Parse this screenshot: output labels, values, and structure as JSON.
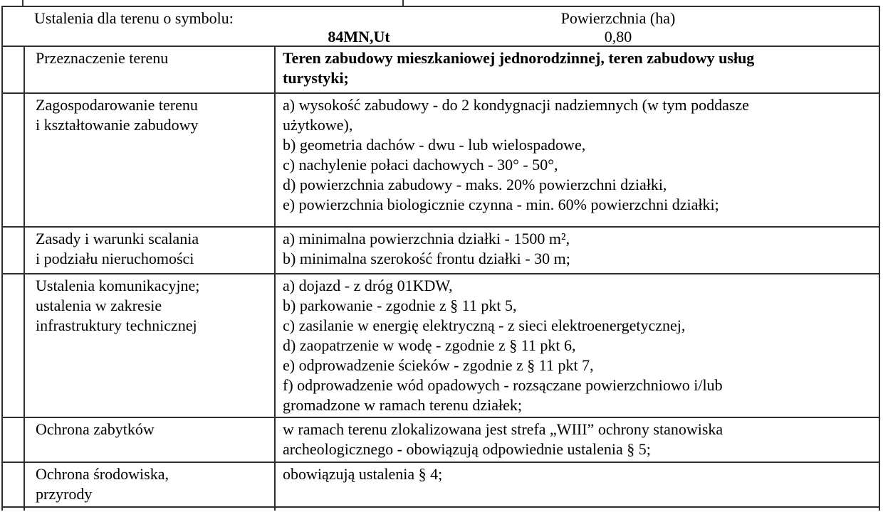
{
  "header": {
    "title": "Ustalenia dla terenu o symbolu:",
    "symbol": "84MN,Ut",
    "area_label": "Powierzchnia (ha)",
    "area_value": "0,80"
  },
  "rows": [
    {
      "label": [
        "Przeznaczenie terenu"
      ],
      "content": [
        "Teren zabudowy mieszkaniowej jednorodzinnej, teren zabudowy usług",
        "turystyki;"
      ]
    },
    {
      "label": [
        "Zagospodarowanie terenu",
        "i kształtowanie zabudowy"
      ],
      "content": [
        "a) wysokość zabudowy - do 2 kondygnacji nadziemnych (w tym poddasze",
        "użytkowe),",
        "b) geometria dachów - dwu - lub wielospadowe,",
        "c) nachylenie połaci dachowych - 30° - 50°,",
        "d) powierzchnia zabudowy - maks. 20% powierzchni działki,",
        "e) powierzchnia biologicznie czynna - min. 60% powierzchni działki;"
      ]
    },
    {
      "label": [
        "Zasady i warunki scalania",
        "i podziału nieruchomości"
      ],
      "content": [
        "a) minimalna powierzchnia działki - 1500 m²,",
        "b) minimalna szerokość frontu działki - 30 m;"
      ]
    },
    {
      "label": [
        "Ustalenia komunikacyjne;",
        "ustalenia w zakresie",
        "infrastruktury technicznej"
      ],
      "content": [
        "a) dojazd - z dróg 01KDW,",
        "b) parkowanie - zgodnie z § 11 pkt 5,",
        "c) zasilanie w energię elektryczną - z sieci elektroenergetycznej,",
        "d) zaopatrzenie w wodę - zgodnie z § 11 pkt 6,",
        "e) odprowadzenie ścieków - zgodnie z § 11 pkt 7,",
        "f) odprowadzenie wód opadowych - rozsączane powierzchniowo i/lub",
        "gromadzone w ramach terenu działek;"
      ]
    },
    {
      "label": [
        "Ochrona zabytków"
      ],
      "content": [
        "w ramach terenu zlokalizowana jest strefa „WIII” ochrony stanowiska",
        "archeologicznego - obowiązują odpowiednie ustalenia § 5;"
      ]
    },
    {
      "label": [
        "Ochrona środowiska,",
        "przyrody"
      ],
      "content": [
        "obowiązują ustalenia § 4;"
      ]
    }
  ],
  "colors": {
    "border": "#2e2e2e",
    "text": "#000000",
    "background": "#ffffff"
  }
}
